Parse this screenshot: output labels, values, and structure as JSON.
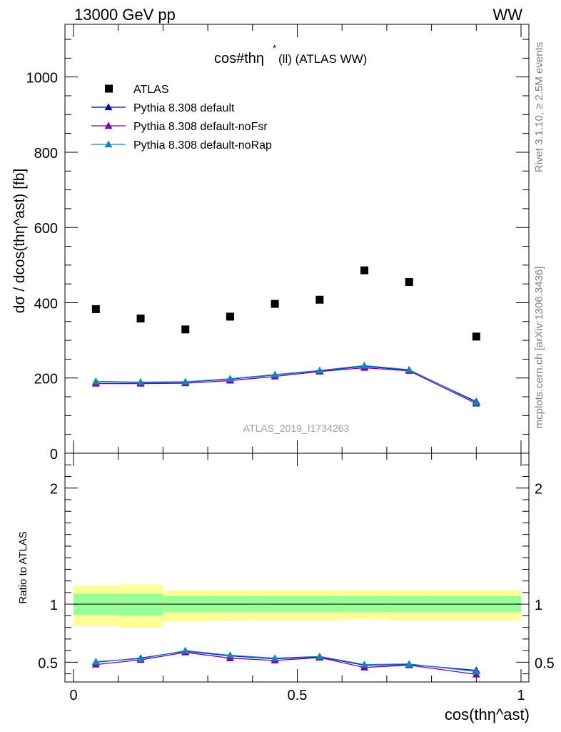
{
  "header": {
    "left": "13000 GeV pp",
    "right": "WW"
  },
  "main": {
    "title": "cos#thη",
    "title_sup": "*",
    "title_rest": "(ll) (ATLAS WW)",
    "watermark": "ATLAS_2019_I1734263",
    "ylabel": "dσ / dcos(thη^ast) [fb]"
  },
  "ratio": {
    "ylabel": "Ratio to ATLAS"
  },
  "xlabel": "cos(thη^ast)",
  "side": {
    "rivet": "Rivet 3.1.10, ≥ 2.5M events",
    "mcplots": "mcplots.cern.ch [arXiv:1306.3436]"
  },
  "colors": {
    "data": "#000000",
    "default": "#0000cc",
    "noFsr": "#7a00b0",
    "noRap": "#1a86b0",
    "band_outer": "#ffff99",
    "band_inner": "#99ff99"
  },
  "chart_data": [
    {
      "type": "scatter",
      "panel": "main",
      "title": "cos#thη* (ll) (ATLAS WW)",
      "xlabel": "cos(thη^ast)",
      "ylabel": "dσ / dcos(thη^ast) [fb]",
      "xlim": [
        0,
        1
      ],
      "ylim": [
        0,
        1140
      ],
      "yticks": [
        0,
        200,
        400,
        600,
        800,
        1000
      ],
      "legend_position": "top-left",
      "x": [
        0.05,
        0.15,
        0.25,
        0.35,
        0.45,
        0.55,
        0.65,
        0.75,
        0.9
      ],
      "series": [
        {
          "name": "ATLAS",
          "marker": "square",
          "values": [
            383,
            358,
            329,
            363,
            397,
            408,
            486,
            455,
            310
          ]
        },
        {
          "name": "Pythia 8.308 default",
          "marker": "triangle",
          "values": [
            190,
            188,
            189,
            197,
            208,
            219,
            231,
            221,
            137
          ]
        },
        {
          "name": "Pythia 8.308 default-noFsr",
          "marker": "triangle",
          "values": [
            185,
            185,
            186,
            193,
            204,
            217,
            227,
            219,
            132
          ]
        },
        {
          "name": "Pythia 8.308 default-noRap",
          "marker": "triangle",
          "values": [
            191,
            189,
            190,
            198,
            209,
            220,
            233,
            222,
            135
          ]
        }
      ]
    },
    {
      "type": "line",
      "panel": "ratio",
      "ylabel": "Ratio to ATLAS",
      "xlabel": "cos(thη^ast)",
      "xlim": [
        0,
        1
      ],
      "ylim": [
        0.33,
        2.3
      ],
      "yticks": [
        0.5,
        1,
        2
      ],
      "xticks": [
        0,
        0.5,
        1
      ],
      "bins": [
        [
          0,
          0.1
        ],
        [
          0.1,
          0.2
        ],
        [
          0.2,
          0.3
        ],
        [
          0.3,
          0.4
        ],
        [
          0.4,
          0.5
        ],
        [
          0.5,
          0.6
        ],
        [
          0.6,
          0.7
        ],
        [
          0.7,
          0.8
        ],
        [
          0.8,
          1.0
        ]
      ],
      "band_outer": [
        [
          0.81,
          1.16
        ],
        [
          0.8,
          1.17
        ],
        [
          0.85,
          1.12
        ],
        [
          0.86,
          1.12
        ],
        [
          0.86,
          1.12
        ],
        [
          0.86,
          1.12
        ],
        [
          0.87,
          1.12
        ],
        [
          0.86,
          1.12
        ],
        [
          0.86,
          1.12
        ]
      ],
      "band_inner": [
        [
          0.91,
          1.09
        ],
        [
          0.9,
          1.09
        ],
        [
          0.93,
          1.07
        ],
        [
          0.93,
          1.07
        ],
        [
          0.93,
          1.07
        ],
        [
          0.93,
          1.07
        ],
        [
          0.93,
          1.07
        ],
        [
          0.93,
          1.07
        ],
        [
          0.93,
          1.07
        ]
      ],
      "x": [
        0.05,
        0.15,
        0.25,
        0.35,
        0.45,
        0.55,
        0.65,
        0.75,
        0.9
      ],
      "series": [
        {
          "name": "Pythia 8.308 default",
          "values": [
            0.5,
            0.535,
            0.595,
            0.555,
            0.53,
            0.545,
            0.475,
            0.48,
            0.43
          ]
        },
        {
          "name": "Pythia 8.308 default-noFsr",
          "values": [
            0.48,
            0.52,
            0.585,
            0.535,
            0.515,
            0.54,
            0.455,
            0.475,
            0.395
          ]
        },
        {
          "name": "Pythia 8.308 default-noRap",
          "values": [
            0.505,
            0.53,
            0.6,
            0.56,
            0.535,
            0.55,
            0.48,
            0.485,
            0.42
          ]
        }
      ]
    }
  ]
}
